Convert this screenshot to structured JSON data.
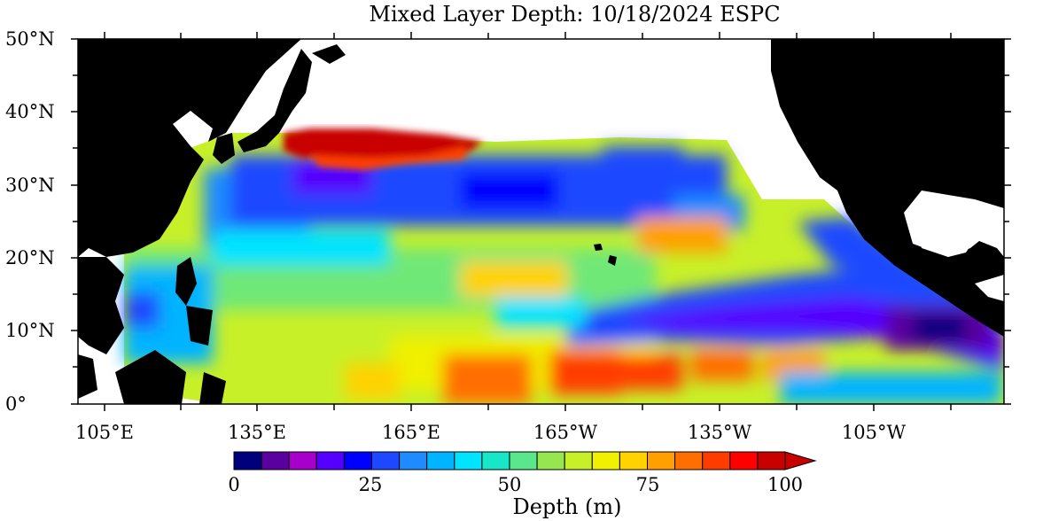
{
  "title": "Mixed Layer Depth: 10/18/2024 ESPC",
  "lat_labels": [
    "50°N",
    "40°N",
    "30°N",
    "20°N",
    "10°N",
    "0°"
  ],
  "lon_labels": [
    "105°E",
    "135°E",
    "165°E",
    "165°W",
    "135°W",
    "105°W"
  ],
  "colorbar": {
    "title": "Depth (m)",
    "tick_labels": [
      "0",
      "25",
      "50",
      "75",
      "100"
    ],
    "colors": [
      "#00007f",
      "#5a00a0",
      "#a800cc",
      "#5500ff",
      "#0000ff",
      "#1e48ff",
      "#1e8cff",
      "#00b4ff",
      "#00e4ff",
      "#18e6c8",
      "#5ae68c",
      "#96e650",
      "#c8f028",
      "#f0f000",
      "#ffd200",
      "#ffa000",
      "#ff6e00",
      "#ff3c00",
      "#ff0000",
      "#c80000"
    ],
    "range": [
      0,
      100
    ],
    "extend": "max"
  },
  "map_extent": {
    "lon_west": "100°E",
    "lon_east": "80°W",
    "lat_south": "0°",
    "lat_north": "50°N"
  }
}
